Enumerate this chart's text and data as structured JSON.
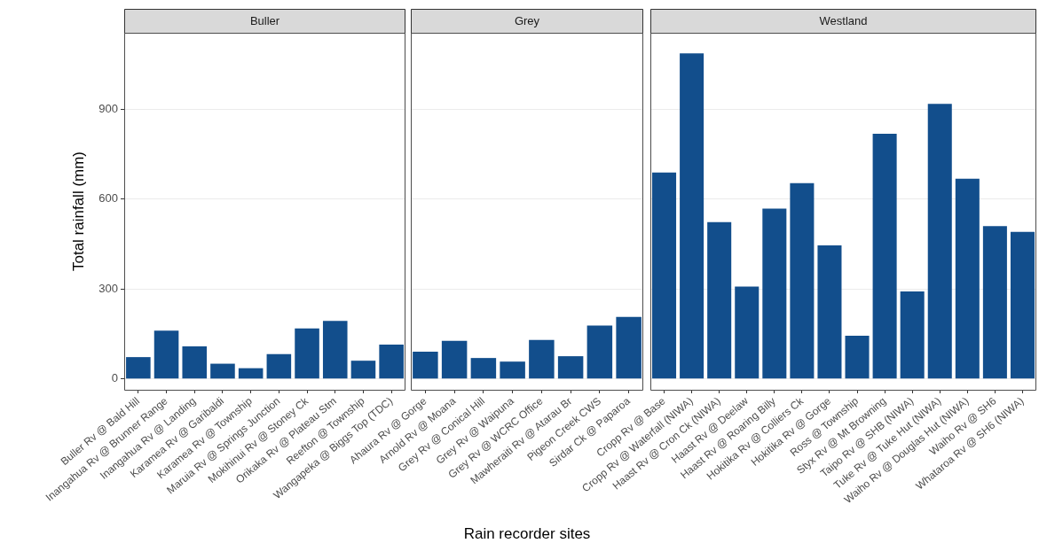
{
  "chart_data": [
    {
      "type": "bar",
      "title": "Buller",
      "ylabel": "Total rainfall (mm)",
      "categories": [
        "Buller Rv @ Bald Hill",
        "Inangahua Rv @ Brunner Range",
        "Inangahua Rv @ Landing",
        "Karamea Rv @ Garibaldi",
        "Karamea Rv @ Township",
        "Maruia Rv @ Springs Junction",
        "Mokihinui Rv @ Stoney Ck",
        "Orikaka Rv @ Plateau Stm",
        "Reefton @ Township",
        "Wangapeka @ Biggs Top (TDC)"
      ],
      "values": [
        73,
        161,
        109,
        51,
        36,
        83,
        169,
        194,
        61,
        115
      ],
      "color": "#124e8c",
      "ylim": [
        -36,
        1155
      ],
      "yticks": [
        0,
        300,
        600,
        900
      ],
      "grid": "y",
      "legend": false
    },
    {
      "type": "bar",
      "title": "Grey",
      "xlabel": "Rain recorder sites",
      "categories": [
        "Ahaura Rv @ Gorge",
        "Arnold Rv @ Moana",
        "Grey Rv @ Conical Hill",
        "Grey Rv @ Waipuna",
        "Grey Rv @ WCRC Office",
        "Mawheraiti Rv @ Atarau Br",
        "Pigeon Creek CWS",
        "Sirdar Ck @ Paparoa"
      ],
      "values": [
        91,
        127,
        70,
        58,
        130,
        76,
        178,
        207
      ],
      "color": "#124e8c",
      "ylim": [
        -36,
        1155
      ],
      "yticks": [
        0,
        300,
        600,
        900
      ],
      "grid": "y",
      "legend": false,
      "tick_labels": "x"
    },
    {
      "type": "bar",
      "title": "Westland",
      "categories": [
        "Cropp Rv @ Base",
        "Cropp Rv @ Waterfall (NIWA)",
        "Haast Rv @ Cron Ck (NIWA)",
        "Haast Rv @ Deelaw",
        "Haast Rv @ Roaring Billy",
        "Hokitika Rv @ Colliers Ck",
        "Hokitika Rv @ Gorge",
        "Ross @ Township",
        "Styx Rv @ Mt Browning",
        "Taipo Rv @ SHB (NIWA)",
        "Tuke Rv @ Tuke Hut (NIWA)",
        "Waiho Rv @ Douglas Hut (NIWA)",
        "Waiho Rv @ SH6",
        "Whataroa Rv @ SH6 (NIWA)"
      ],
      "values": [
        689,
        1086,
        523,
        308,
        568,
        653,
        446,
        144,
        818,
        292,
        918,
        668,
        510,
        491
      ],
      "color": "#124e8c",
      "ylim": [
        -36,
        1155
      ],
      "yticks": [
        0,
        300,
        600,
        900
      ],
      "grid": "y",
      "legend": false,
      "tick_labels": "x"
    }
  ]
}
